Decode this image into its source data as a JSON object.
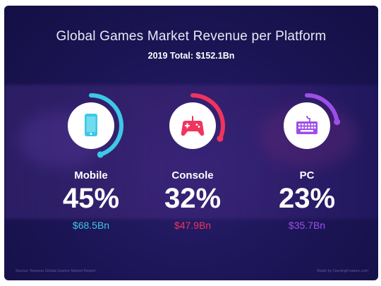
{
  "chart_data": {
    "type": "radial-progress",
    "title": "Global Games Market Revenue per Platform",
    "subtitle": "2019 Total: $152.1Bn",
    "series": [
      {
        "name": "Mobile",
        "share_label": "45%",
        "share": 0.45,
        "revenue_label": "$68.5Bn",
        "revenue": 68.5,
        "color": "#3cc8e6",
        "icon": "smartphone-icon"
      },
      {
        "name": "Console",
        "share_label": "32%",
        "share": 0.32,
        "revenue_label": "$47.9Bn",
        "revenue": 47.9,
        "color": "#f0345e",
        "icon": "gamepad-icon"
      },
      {
        "name": "PC",
        "share_label": "23%",
        "share": 0.23,
        "revenue_label": "$35.7Bn",
        "revenue": 35.7,
        "color": "#9d4ee8",
        "icon": "keyboard-icon"
      }
    ]
  },
  "footer": {
    "source": "Source: Newzoo Global Games Market Report",
    "made_by": "Made by GamingFeature.com"
  }
}
